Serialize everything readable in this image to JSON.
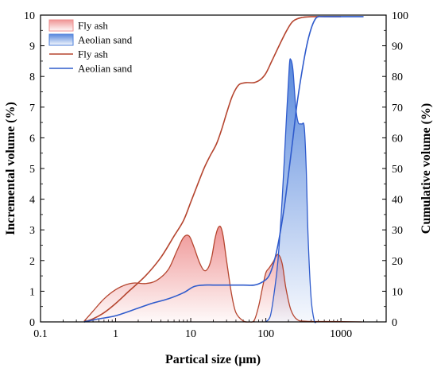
{
  "chart_data": {
    "type": "area",
    "xlabel": "Partical size (μm)",
    "ylabel_left": "Incremental volume (%)",
    "ylabel_right": "Cumulative volume (%)",
    "x_scale": "log",
    "xlim": [
      0.1,
      4000
    ],
    "ylim_left": [
      0,
      10
    ],
    "ylim_right": [
      0,
      100
    ],
    "x_ticks": [
      0.1,
      1,
      10,
      100,
      1000
    ],
    "x_tick_labels": [
      "0.1",
      "1",
      "10",
      "100",
      "1000"
    ],
    "y_left_ticks": [
      0,
      1,
      2,
      3,
      4,
      5,
      6,
      7,
      8,
      9,
      10
    ],
    "y_left_tick_labels": [
      "0",
      "1",
      "2",
      "3",
      "4",
      "5",
      "6",
      "7",
      "8",
      "9",
      "10"
    ],
    "y_right_ticks": [
      0,
      10,
      20,
      30,
      40,
      50,
      60,
      70,
      80,
      90,
      100
    ],
    "y_right_tick_labels": [
      "0",
      "10",
      "20",
      "30",
      "40",
      "50",
      "60",
      "70",
      "80",
      "90",
      "100"
    ],
    "legend_position": "top-left",
    "legend": [
      {
        "label": "Fly ash",
        "kind": "area",
        "color": "#ee8f8f"
      },
      {
        "label": "Aeolian sand",
        "kind": "area",
        "color": "#4f82db"
      },
      {
        "label": "Fly ash",
        "kind": "line",
        "color": "#b5452f"
      },
      {
        "label": "Aeolian sand",
        "kind": "line",
        "color": "#2f5bcc"
      }
    ],
    "series": [
      {
        "name": "Fly ash",
        "kind": "incremental",
        "axis": "left",
        "color": "#b5452f",
        "fill": "#ee8f8f",
        "points": [
          [
            0.38,
            0.02
          ],
          [
            0.5,
            0.35
          ],
          [
            0.7,
            0.75
          ],
          [
            1.0,
            1.05
          ],
          [
            1.4,
            1.22
          ],
          [
            1.8,
            1.27
          ],
          [
            2.5,
            1.25
          ],
          [
            3.5,
            1.35
          ],
          [
            5,
            1.7
          ],
          [
            6.5,
            2.3
          ],
          [
            8,
            2.75
          ],
          [
            9.5,
            2.8
          ],
          [
            11,
            2.45
          ],
          [
            13,
            1.95
          ],
          [
            15,
            1.68
          ],
          [
            17,
            1.75
          ],
          [
            19,
            2.1
          ],
          [
            21,
            2.7
          ],
          [
            23,
            3.05
          ],
          [
            25,
            3.1
          ],
          [
            27,
            2.8
          ],
          [
            30,
            2.0
          ],
          [
            35,
            0.9
          ],
          [
            40,
            0.3
          ],
          [
            50,
            0.03
          ],
          [
            60,
            0.0
          ],
          [
            70,
            0.05
          ],
          [
            80,
            0.5
          ],
          [
            90,
            1.1
          ],
          [
            100,
            1.6
          ],
          [
            110,
            1.75
          ],
          [
            125,
            1.95
          ],
          [
            145,
            2.2
          ],
          [
            165,
            1.9
          ],
          [
            185,
            1.1
          ],
          [
            215,
            0.4
          ],
          [
            260,
            0.08
          ],
          [
            350,
            0.02
          ],
          [
            1000,
            0.01
          ],
          [
            1900,
            0.0
          ]
        ]
      },
      {
        "name": "Aeolian sand",
        "kind": "incremental",
        "axis": "left",
        "color": "#2f5bcc",
        "fill": "#4f82db",
        "points": [
          [
            100,
            0.0
          ],
          [
            115,
            0.2
          ],
          [
            130,
            1.0
          ],
          [
            145,
            2.0
          ],
          [
            165,
            4.0
          ],
          [
            185,
            6.3
          ],
          [
            205,
            8.3
          ],
          [
            215,
            8.55
          ],
          [
            230,
            8.2
          ],
          [
            250,
            7.0
          ],
          [
            270,
            6.5
          ],
          [
            300,
            6.45
          ],
          [
            325,
            6.35
          ],
          [
            345,
            5.0
          ],
          [
            365,
            2.8
          ],
          [
            400,
            0.8
          ],
          [
            440,
            0.05
          ],
          [
            470,
            0.0
          ]
        ]
      },
      {
        "name": "Fly ash",
        "kind": "cumulative",
        "axis": "right",
        "color": "#b5452f",
        "points": [
          [
            0.38,
            0
          ],
          [
            0.5,
            1
          ],
          [
            0.7,
            3
          ],
          [
            1.0,
            6
          ],
          [
            1.5,
            10
          ],
          [
            2.5,
            15
          ],
          [
            4,
            21
          ],
          [
            6,
            28
          ],
          [
            8,
            33
          ],
          [
            10,
            39
          ],
          [
            12,
            44
          ],
          [
            15,
            50
          ],
          [
            18,
            54
          ],
          [
            22,
            58
          ],
          [
            26,
            63
          ],
          [
            30,
            68
          ],
          [
            35,
            73
          ],
          [
            40,
            76
          ],
          [
            45,
            77.5
          ],
          [
            55,
            78
          ],
          [
            70,
            78
          ],
          [
            85,
            79
          ],
          [
            100,
            81
          ],
          [
            120,
            85
          ],
          [
            150,
            90
          ],
          [
            190,
            95
          ],
          [
            230,
            98
          ],
          [
            300,
            99.2
          ],
          [
            450,
            99.5
          ],
          [
            1000,
            99.5
          ]
        ]
      },
      {
        "name": "Aeolian sand",
        "kind": "cumulative",
        "axis": "right",
        "color": "#2f5bcc",
        "points": [
          [
            0.38,
            0
          ],
          [
            0.6,
            1
          ],
          [
            1,
            2
          ],
          [
            2,
            4.5
          ],
          [
            3,
            6
          ],
          [
            5,
            7.5
          ],
          [
            8,
            9.5
          ],
          [
            11,
            11.5
          ],
          [
            15,
            12
          ],
          [
            20,
            12
          ],
          [
            30,
            12
          ],
          [
            50,
            12
          ],
          [
            70,
            12
          ],
          [
            90,
            13
          ],
          [
            110,
            15
          ],
          [
            130,
            20
          ],
          [
            150,
            27
          ],
          [
            175,
            37
          ],
          [
            200,
            48
          ],
          [
            230,
            60
          ],
          [
            260,
            71
          ],
          [
            300,
            81
          ],
          [
            350,
            90
          ],
          [
            400,
            95.5
          ],
          [
            450,
            98.5
          ],
          [
            500,
            99.5
          ],
          [
            600,
            99.5
          ],
          [
            2000,
            99.5
          ]
        ]
      }
    ]
  }
}
